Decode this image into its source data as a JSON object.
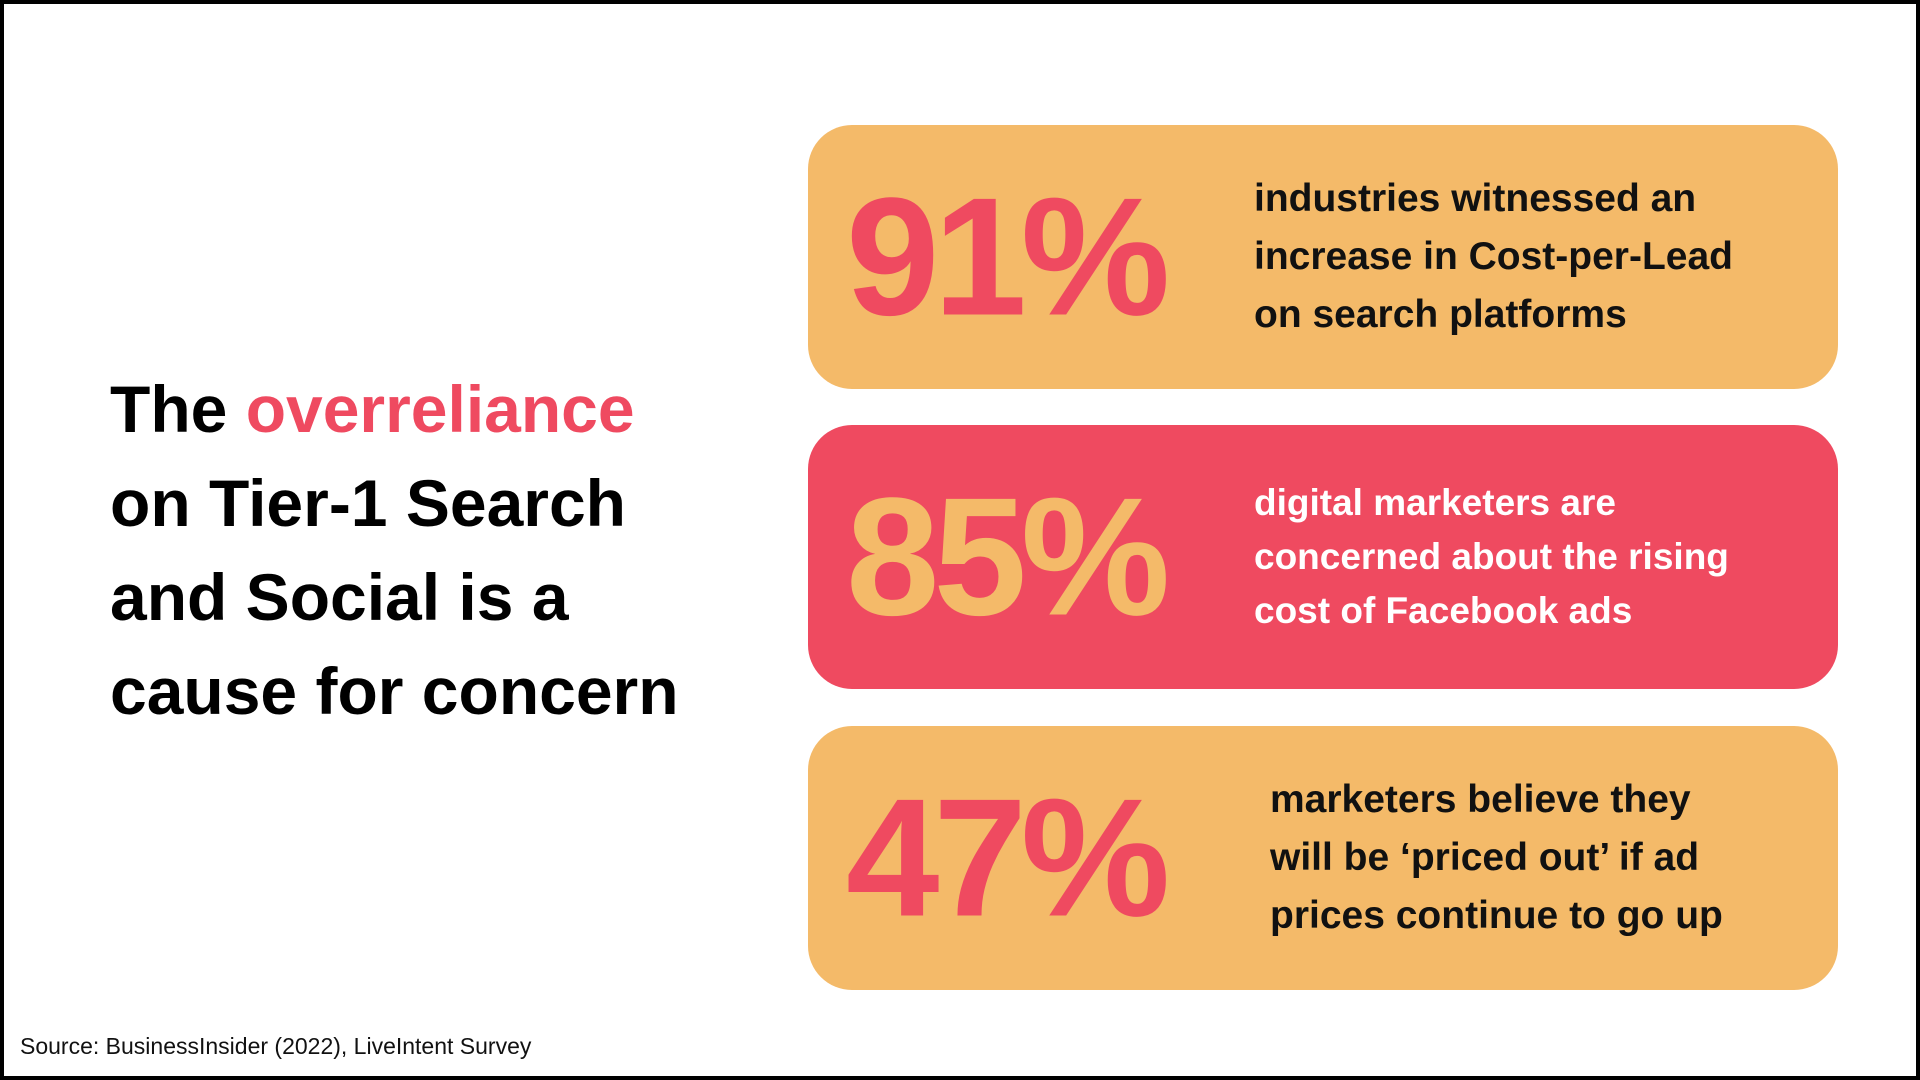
{
  "headline": {
    "first": "The",
    "highlight": "overreliance",
    "lines": [
      "on Tier-1 Search",
      "and Social is a",
      "cause for concern"
    ]
  },
  "stats": [
    {
      "figure": "91%",
      "lines": [
        "industries witnessed an",
        "increase in Cost-per-Lead",
        "on search platforms"
      ]
    },
    {
      "figure": "85%",
      "lines": [
        "digital marketers are",
        "concerned about the rising",
        "cost of Facebook ads"
      ]
    },
    {
      "figure": "47%",
      "lines": [
        "marketers believe they",
        "will be ‘priced out’ if ad",
        "prices continue to go up"
      ]
    }
  ],
  "source": "Source: BusinessInsider (2022), LiveIntent Survey"
}
